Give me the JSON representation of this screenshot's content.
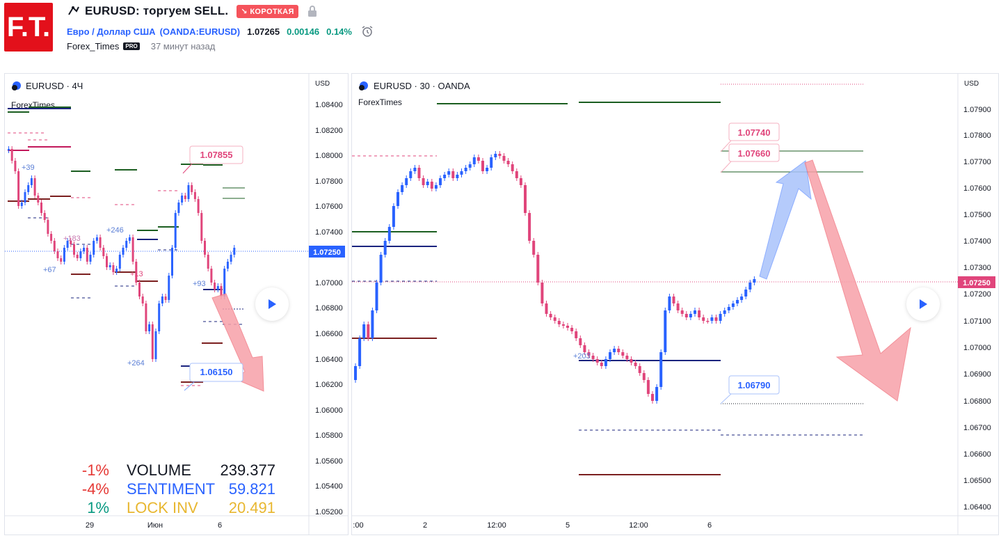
{
  "header": {
    "logo_text": "F.T.",
    "idea_title": "EURUSD: торгуем SELL.",
    "direction_badge": "↘ КОРОТКАЯ",
    "symbol_desc": "Евро / Доллар США",
    "exchange_symbol": "(OANDA:EURUSD)",
    "price": "1.07265",
    "change": "0.00146",
    "change_pct": "0.14%",
    "author": "Forex_Times",
    "author_badge": "PRO",
    "published": "37 минут назад"
  },
  "left_chart": {
    "legend": "EURUSD · 4Ч",
    "indicator": "ForexTimes",
    "currency": "USD",
    "price_axis": [
      "1.08400",
      "1.08200",
      "1.08000",
      "1.07800",
      "1.07600",
      "1.07400",
      "1.07250",
      "1.07000",
      "1.06800",
      "1.06600",
      "1.06400",
      "1.06200",
      "1.06000",
      "1.05800",
      "1.05600",
      "1.05400",
      "1.05200"
    ],
    "time_axis": [
      "29",
      "Июн",
      "6"
    ],
    "last_price": "1.07250",
    "label_high": "1.07855",
    "label_low": "1.06150",
    "markers": [
      "+39",
      "+183",
      "+67",
      "+246",
      "+13",
      "+93",
      "+264"
    ],
    "stats": [
      {
        "pct": "-1%",
        "label": "VOLUME",
        "value": "239.377",
        "pct_color": "#e53935",
        "label_color": "#131722",
        "value_color": "#131722"
      },
      {
        "pct": "-4%",
        "label": "SENTIMENT",
        "value": "59.821",
        "pct_color": "#e53935",
        "label_color": "#2962ff",
        "value_color": "#2962ff"
      },
      {
        "pct": "1%",
        "label": "LOCK INV",
        "value": "20.491",
        "pct_color": "#089981",
        "label_color": "#e8b730",
        "value_color": "#e8b730"
      }
    ]
  },
  "right_chart": {
    "legend": "EURUSD · 30 · OANDA",
    "indicator": "ForexTimes",
    "currency": "USD",
    "price_axis": [
      "1.07900",
      "1.07800",
      "1.07700",
      "1.07600",
      "1.07500",
      "1.07400",
      "1.07300",
      "1.07250",
      "1.07200",
      "1.07100",
      "1.07000",
      "1.06900",
      "1.06800",
      "1.06700",
      "1.06600",
      "1.06500",
      "1.06400"
    ],
    "time_axis": [
      ":00",
      "2",
      "12:00",
      "5",
      "12:00",
      "6"
    ],
    "last_price": "1.07250",
    "label_top1": "1.07740",
    "label_top2": "1.07660",
    "label_low": "1.06790",
    "marker": "+203"
  },
  "colors": {
    "up": "#2962ff",
    "down": "#e0457b",
    "arrow_down": "#f7a1a9",
    "arrow_up": "#a9c2fb",
    "price_tag": "#2962ff"
  }
}
